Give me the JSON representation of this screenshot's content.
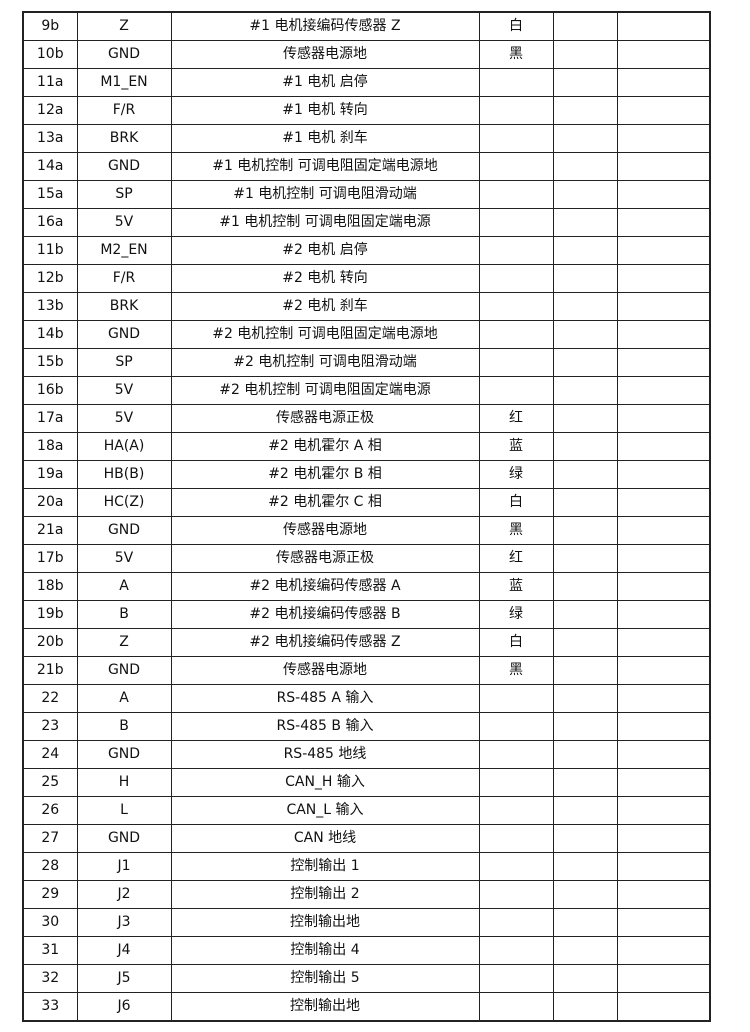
{
  "rows": [
    [
      "9b",
      "Z",
      "#1 电机接编码传感器 Z",
      "白"
    ],
    [
      "10b",
      "GND",
      "传感器电源地",
      "黑"
    ],
    [
      "11a",
      "M1_EN",
      "#1 电机  启停",
      ""
    ],
    [
      "12a",
      "F/R",
      "#1 电机  转向",
      ""
    ],
    [
      "13a",
      "BRK",
      "#1  电机  刹车",
      ""
    ],
    [
      "14a",
      "GND",
      "#1 电机控制  可调电阻固定端电源地",
      ""
    ],
    [
      "15a",
      "SP",
      "#1 电机控制  可调电阻滑动端",
      ""
    ],
    [
      "16a",
      "5V",
      "#1 电机控制  可调电阻固定端电源",
      ""
    ],
    [
      "11b",
      "M2_EN",
      "#2 电机  启停",
      ""
    ],
    [
      "12b",
      "F/R",
      "#2 电机  转向",
      ""
    ],
    [
      "13b",
      "BRK",
      "#2  电机  刹车",
      ""
    ],
    [
      "14b",
      "GND",
      "#2 电机控制  可调电阻固定端电源地",
      ""
    ],
    [
      "15b",
      "SP",
      "#2 电机控制  可调电阻滑动端",
      ""
    ],
    [
      "16b",
      "5V",
      "#2 电机控制  可调电阻固定端电源",
      ""
    ],
    [
      "17a",
      "5V",
      "传感器电源正极",
      "红"
    ],
    [
      "18a",
      "HA(A)",
      "#2 电机霍尔 A 相",
      "蓝"
    ],
    [
      "19a",
      "HB(B)",
      "#2 电机霍尔 B 相",
      "绿"
    ],
    [
      "20a",
      "HC(Z)",
      "#2 电机霍尔 C 相",
      "白"
    ],
    [
      "21a",
      "GND",
      "传感器电源地",
      "黑"
    ],
    [
      "17b",
      "5V",
      "传感器电源正极",
      "红"
    ],
    [
      "18b",
      "A",
      "#2 电机接编码传感器 A",
      "蓝"
    ],
    [
      "19b",
      "B",
      "#2 电机接编码传感器 B",
      "绿"
    ],
    [
      "20b",
      "Z",
      "#2 电机接编码传感器 Z",
      "白"
    ],
    [
      "21b",
      "GND",
      "传感器电源地",
      "黑"
    ],
    [
      "22",
      "A",
      "RS-485 A 输入",
      ""
    ],
    [
      "23",
      "B",
      "RS-485 B 输入",
      ""
    ],
    [
      "24",
      "GND",
      "RS-485  地线",
      ""
    ],
    [
      "25",
      "H",
      "CAN_H 输入",
      ""
    ],
    [
      "26",
      "L",
      "CAN_L 输入",
      ""
    ],
    [
      "27",
      "GND",
      "CAN 地线",
      ""
    ],
    [
      "28",
      "J1",
      "控制输出 1",
      ""
    ],
    [
      "29",
      "J2",
      "控制输出 2",
      ""
    ],
    [
      "30",
      "J3",
      "控制输出地",
      ""
    ],
    [
      "31",
      "J4",
      "控制输出 4",
      ""
    ],
    [
      "32",
      "J5",
      "控制输出 5",
      ""
    ],
    [
      "33",
      "J6",
      "控制输出地",
      ""
    ]
  ]
}
